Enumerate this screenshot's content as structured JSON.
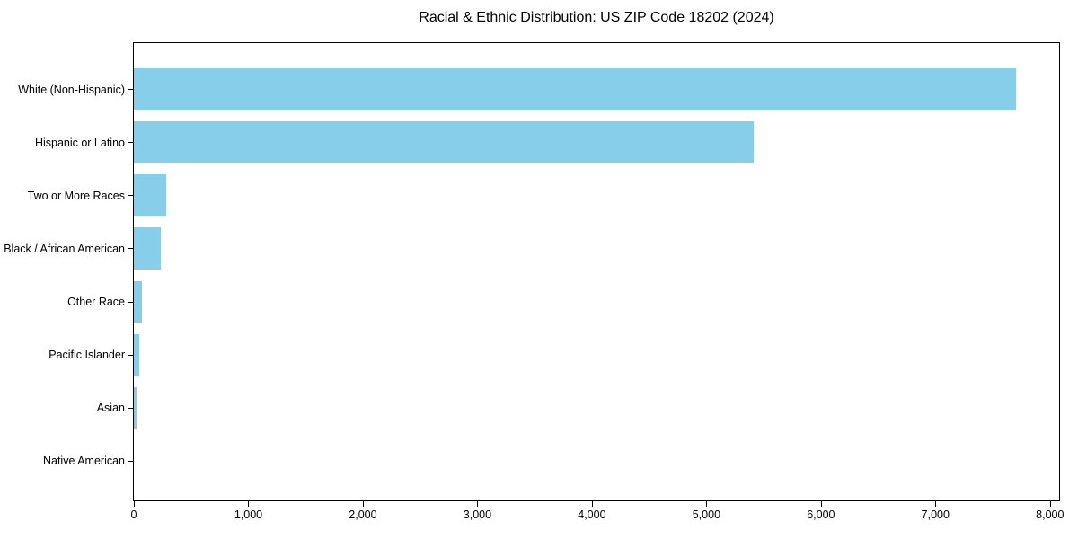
{
  "chart_data": {
    "type": "bar",
    "orientation": "horizontal",
    "title": "Racial & Ethnic Distribution: US ZIP Code 18202 (2024)",
    "categories": [
      "White (Non-Hispanic)",
      "Hispanic or Latino",
      "Two or More Races",
      "Black / African American",
      "Other Race",
      "Pacific Islander",
      "Asian",
      "Native American"
    ],
    "values": [
      7700,
      5410,
      280,
      235,
      70,
      45,
      20,
      0
    ],
    "xlabel": "",
    "ylabel": "",
    "xlim": [
      0,
      8080
    ],
    "xticks": [
      0,
      1000,
      2000,
      3000,
      4000,
      5000,
      6000,
      7000,
      8000
    ],
    "grid": false,
    "legend_position": "none",
    "bar_color": "#87CEEB",
    "axis_color": "#000000",
    "text_color": "#000000",
    "background_color": "#ffffff"
  }
}
